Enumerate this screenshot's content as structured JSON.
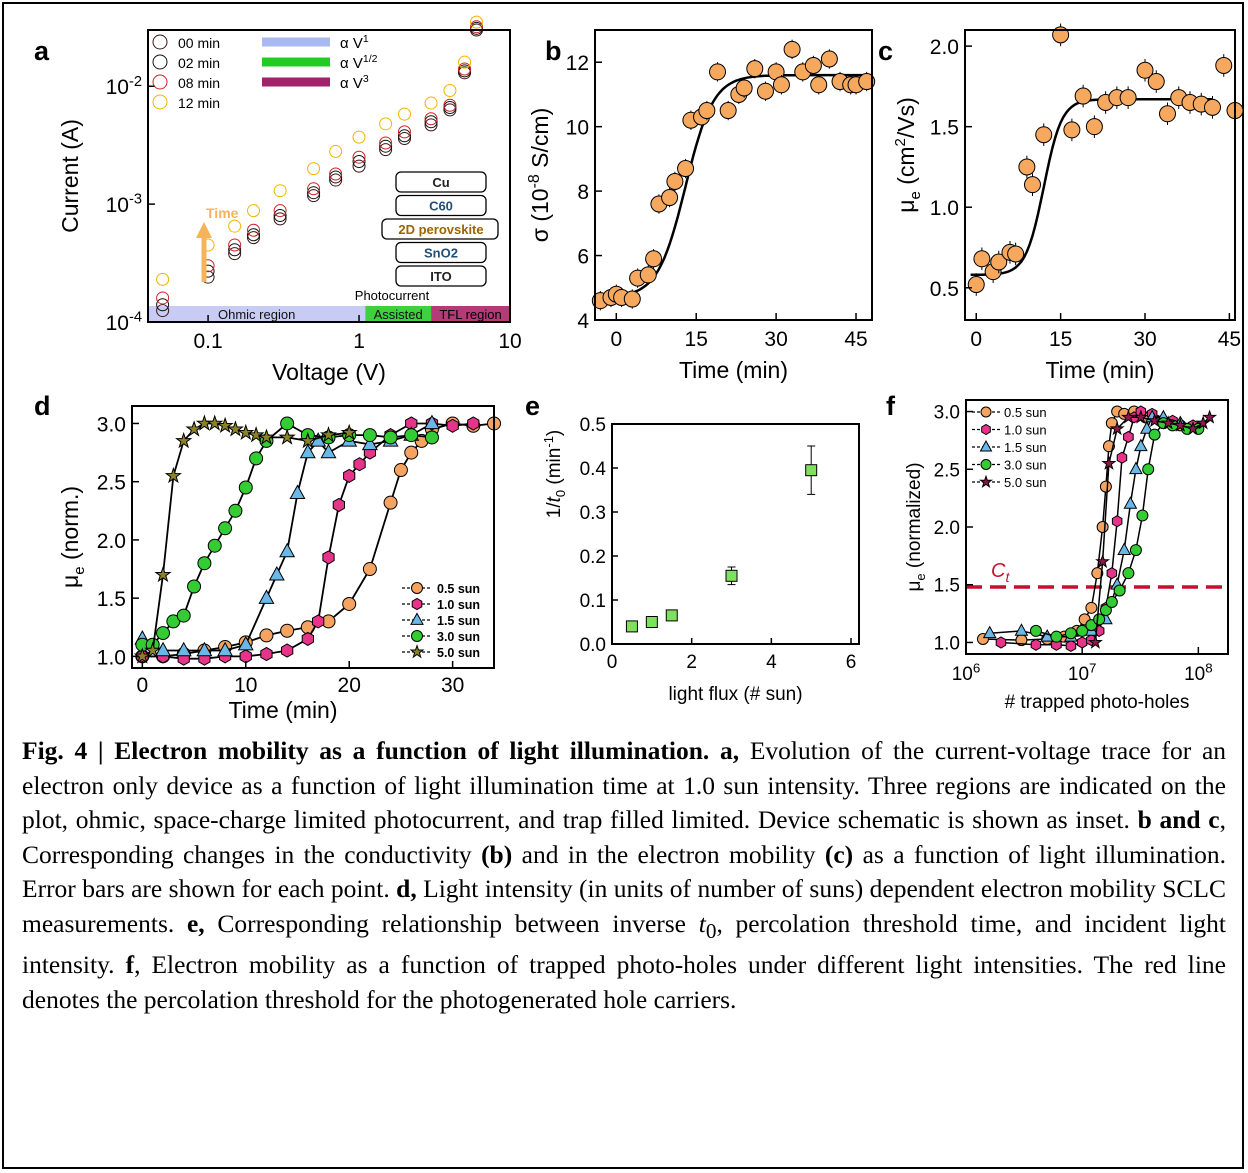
{
  "chart_data": [
    {
      "panel": "a",
      "type": "scatter",
      "xlabel": "Voltage (V)",
      "ylabel": "Current (A)",
      "xscale": "log",
      "yscale": "log",
      "xlim": [
        0.04,
        10
      ],
      "ylim": [
        0.0001,
        0.03
      ],
      "xticks": [
        "0.1",
        "1",
        "10"
      ],
      "yticks": [
        "10^-4",
        "10^-3",
        "10^-2"
      ],
      "legend": "top-left",
      "series": [
        {
          "name": "00 min",
          "color": "#3b1414",
          "x": [
            0.05,
            0.1,
            0.15,
            0.2,
            0.3,
            0.5,
            0.7,
            1,
            1.5,
            2,
            3,
            4,
            5,
            6
          ],
          "y": [
            0.000125,
            0.00024,
            0.00038,
            0.00052,
            0.00075,
            0.00118,
            0.0016,
            0.0021,
            0.0029,
            0.0036,
            0.0047,
            0.0063,
            0.013,
            0.03
          ]
        },
        {
          "name": "02 min",
          "color": "#111111",
          "x": [
            0.05,
            0.1,
            0.15,
            0.2,
            0.3,
            0.5,
            0.7,
            1,
            1.5,
            2,
            3,
            4,
            5,
            6
          ],
          "y": [
            0.00014,
            0.00027,
            0.00041,
            0.00055,
            0.0008,
            0.00125,
            0.0017,
            0.0023,
            0.0031,
            0.0038,
            0.005,
            0.0066,
            0.0135,
            0.031
          ]
        },
        {
          "name": "08 min",
          "color": "#cc2222",
          "x": [
            0.05,
            0.1,
            0.15,
            0.2,
            0.3,
            0.5,
            0.7,
            1,
            1.5,
            2,
            3,
            4,
            5,
            6
          ],
          "y": [
            0.00016,
            0.0003,
            0.00045,
            0.0006,
            0.00088,
            0.00135,
            0.0018,
            0.0025,
            0.0033,
            0.0041,
            0.0053,
            0.0069,
            0.014,
            0.032
          ]
        },
        {
          "name": "12 min",
          "color": "#f2b300",
          "x": [
            0.05,
            0.1,
            0.15,
            0.2,
            0.3,
            0.5,
            0.7,
            1,
            1.5,
            2,
            3,
            4,
            5,
            6
          ],
          "y": [
            0.00023,
            0.00045,
            0.00065,
            0.00088,
            0.0013,
            0.002,
            0.0028,
            0.0037,
            0.0048,
            0.0058,
            0.0072,
            0.0092,
            0.016,
            0.035
          ]
        }
      ],
      "fit_lines": [
        {
          "name": "α V^1",
          "color": "#a8b8f0"
        },
        {
          "name": "α V^1/2",
          "color": "#22cc22"
        },
        {
          "name": "α V^3",
          "color": "#a0226a"
        }
      ],
      "regions": [
        {
          "label": "Ohmic region",
          "color": "#c8ccf5",
          "from": 0.04,
          "to": 1.1
        },
        {
          "label": "Assisted",
          "color": "#3fcf3f",
          "from": 1.1,
          "to": 3
        },
        {
          "label": "TFL region",
          "color": "#b53a78",
          "from": 3,
          "to": 10
        }
      ],
      "annotations": {
        "photocurrent": "Photocurrent",
        "time_arrow": "Time"
      },
      "device_stack": [
        "Cu",
        "C60",
        "2D perovskite",
        "SnO2",
        "ITO"
      ]
    },
    {
      "panel": "b",
      "type": "scatter",
      "xlabel": "Time (min)",
      "ylabel": "σ (10^-8 S/cm)",
      "xlim": [
        -4,
        48
      ],
      "ylim": [
        4,
        13
      ],
      "xticks": [
        0,
        15,
        30,
        45
      ],
      "yticks": [
        4,
        6,
        8,
        10,
        12
      ],
      "x": [
        -3,
        -1,
        0,
        1,
        3,
        4,
        6,
        7,
        8,
        10,
        11,
        13,
        14,
        16,
        17,
        19,
        21,
        23,
        24,
        26,
        28,
        30,
        31,
        33,
        35,
        37,
        38,
        40,
        42,
        44,
        45,
        47
      ],
      "y": [
        4.6,
        4.7,
        4.8,
        4.7,
        4.65,
        5.3,
        5.4,
        5.9,
        7.6,
        7.8,
        8.3,
        8.7,
        10.2,
        10.3,
        10.5,
        11.7,
        10.5,
        11.0,
        11.2,
        11.8,
        11.1,
        11.7,
        11.3,
        12.4,
        11.7,
        11.9,
        11.3,
        12.1,
        11.4,
        11.3,
        11.3,
        11.4
      ],
      "fit": "sigmoid"
    },
    {
      "panel": "c",
      "type": "scatter",
      "xlabel": "Time (min)",
      "ylabel": "μe (cm2/Vs)",
      "xlim": [
        -2,
        46
      ],
      "ylim": [
        0.3,
        2.0
      ],
      "xticks": [
        0,
        15,
        30,
        45
      ],
      "yticks": [
        "0.5",
        "1.0",
        "1.5",
        "2.0"
      ],
      "x": [
        0,
        1,
        3,
        4,
        6,
        7,
        9,
        10,
        12,
        15,
        17,
        19,
        21,
        23,
        25,
        27,
        30,
        32,
        34,
        36,
        38,
        40,
        42,
        44,
        46
      ],
      "y": [
        0.52,
        0.68,
        0.6,
        0.66,
        0.72,
        0.71,
        1.25,
        1.14,
        1.45,
        2.07,
        1.48,
        1.69,
        1.5,
        1.65,
        1.68,
        1.68,
        1.85,
        1.78,
        1.58,
        1.68,
        1.65,
        1.64,
        1.62,
        1.88,
        1.6
      ],
      "fit": "sigmoid"
    },
    {
      "panel": "d",
      "type": "line",
      "xlabel": "Time (min)",
      "ylabel": "μe (norm.)",
      "xlim": [
        -1,
        34
      ],
      "ylim": [
        0.9,
        3.15
      ],
      "xticks": [
        0,
        10,
        20,
        30
      ],
      "yticks": [
        "1.0",
        "1.5",
        "2.0",
        "2.5",
        "3.0"
      ],
      "legend": "bottom-right",
      "series": [
        {
          "name": "0.5 sun",
          "color": "#f4a460",
          "marker": "circle",
          "x": [
            0,
            2,
            4,
            6,
            8,
            10,
            12,
            14,
            16,
            18,
            20,
            22,
            24,
            25,
            26,
            27,
            28,
            30,
            32,
            34
          ],
          "y": [
            1.0,
            1.0,
            1.02,
            1.05,
            1.08,
            1.12,
            1.18,
            1.22,
            1.25,
            1.3,
            1.45,
            1.75,
            2.32,
            2.6,
            2.75,
            2.85,
            2.95,
            3.0,
            2.98,
            3.0
          ]
        },
        {
          "name": "1.0 sun",
          "color": "#e6348a",
          "marker": "hexagon",
          "x": [
            0,
            2,
            4,
            6,
            8,
            10,
            12,
            14,
            16,
            17,
            18,
            19,
            20,
            21,
            22,
            24,
            26,
            28,
            30,
            32
          ],
          "y": [
            1.0,
            1.0,
            0.98,
            0.98,
            1.0,
            1.0,
            1.02,
            1.05,
            1.15,
            1.3,
            1.85,
            2.3,
            2.55,
            2.65,
            2.75,
            2.9,
            3.0,
            3.0,
            2.98,
            3.0
          ]
        },
        {
          "name": "1.5 sun",
          "color": "#6ab8e8",
          "marker": "triangle",
          "x": [
            0,
            2,
            4,
            6,
            8,
            10,
            12,
            13,
            14,
            15,
            16,
            17,
            18,
            20,
            22,
            24,
            26,
            28
          ],
          "y": [
            1.15,
            1.05,
            1.05,
            1.05,
            1.05,
            1.1,
            1.5,
            1.7,
            1.9,
            2.4,
            2.75,
            2.85,
            2.75,
            2.85,
            2.82,
            2.85,
            2.9,
            3.0
          ]
        },
        {
          "name": "3.0 sun",
          "color": "#33cc33",
          "marker": "circle",
          "x": [
            0,
            1,
            2,
            3,
            4,
            5,
            6,
            7,
            8,
            9,
            10,
            11,
            12,
            14,
            16,
            18,
            20,
            22,
            24,
            26,
            28
          ],
          "y": [
            1.1,
            1.1,
            1.2,
            1.3,
            1.35,
            1.6,
            1.8,
            1.95,
            2.1,
            2.25,
            2.45,
            2.7,
            2.85,
            3.0,
            2.9,
            2.88,
            2.9,
            2.9,
            2.88,
            2.9,
            2.88
          ]
        },
        {
          "name": "5.0 sun",
          "color": "#8a8226",
          "marker": "star",
          "x": [
            0,
            1,
            2,
            3,
            4,
            5,
            6,
            7,
            8,
            9,
            10,
            11,
            12,
            14,
            16,
            18,
            20
          ],
          "y": [
            1.0,
            1.05,
            1.7,
            2.55,
            2.85,
            2.95,
            3.0,
            3.0,
            2.98,
            2.95,
            2.92,
            2.9,
            2.88,
            2.88,
            2.85,
            2.9,
            2.92
          ]
        }
      ]
    },
    {
      "panel": "e",
      "type": "scatter",
      "xlabel": "light flux (# sun)",
      "ylabel": "1/t0 (min-1)",
      "xlim": [
        0,
        6.2
      ],
      "ylim": [
        0,
        0.5
      ],
      "xticks": [
        0,
        2,
        4,
        6
      ],
      "yticks": [
        "0.0",
        "0.1",
        "0.2",
        "0.3",
        "0.4",
        "0.5"
      ],
      "x": [
        0.5,
        1.0,
        1.5,
        3.0,
        5.0
      ],
      "y": [
        0.04,
        0.05,
        0.065,
        0.155,
        0.395
      ],
      "err": [
        0.008,
        0.008,
        0.008,
        0.02,
        0.055
      ]
    },
    {
      "panel": "f",
      "type": "scatter",
      "xlabel": "# trapped photo-holes",
      "ylabel": "μe (normalized)",
      "xscale": "log",
      "xlim": [
        1000000,
        180000000
      ],
      "ylim": [
        0.9,
        3.1
      ],
      "xticks": [
        "10^6",
        "10^7",
        "10^8"
      ],
      "yticks": [
        "1.0",
        "1.5",
        "2.0",
        "2.5",
        "3.0"
      ],
      "legend": "top-left",
      "threshold": {
        "label": "Ct",
        "y": 1.48,
        "color": "#c8102e"
      },
      "series": [
        {
          "name": "0.5 sun",
          "color": "#f4a460",
          "marker": "circle",
          "x": [
            1400000.0,
            3000000.0,
            5000000.0,
            7000000.0,
            9000000.0,
            10500000.0,
            12000000.0,
            13500000.0,
            15000000.0,
            16000000.0,
            17000000.0,
            18000000.0,
            20000000.0,
            23000000.0,
            28000000.0,
            35000000.0,
            50000000.0,
            70000000.0
          ],
          "y": [
            1.03,
            1.02,
            1.03,
            1.05,
            1.1,
            1.2,
            1.3,
            1.6,
            2.0,
            2.35,
            2.7,
            2.9,
            3.0,
            2.98,
            3.0,
            2.95,
            2.9,
            2.88
          ]
        },
        {
          "name": "1.0 sun",
          "color": "#e6348a",
          "marker": "hexagon",
          "x": [
            2000000.0,
            4000000.0,
            6000000.0,
            8000000.0,
            10000000.0,
            12000000.0,
            14000000.0,
            16000000.0,
            18000000.0,
            20000000.0,
            22000000.0,
            25000000.0,
            28000000.0,
            32000000.0,
            40000000.0,
            60000000.0,
            90000000.0
          ],
          "y": [
            1.0,
            0.98,
            0.98,
            0.97,
            1.0,
            1.02,
            1.1,
            1.3,
            1.6,
            2.05,
            2.6,
            2.78,
            2.95,
            3.0,
            2.98,
            2.92,
            2.88
          ]
        },
        {
          "name": "1.5 sun",
          "color": "#6ab8e8",
          "marker": "triangle",
          "x": [
            1600000.0,
            3000000.0,
            5000000.0,
            8000000.0,
            12000000.0,
            16000000.0,
            20000000.0,
            23000000.0,
            26000000.0,
            29000000.0,
            32000000.0,
            36000000.0,
            40000000.0,
            50000000.0,
            70000000.0
          ],
          "y": [
            1.08,
            1.1,
            1.05,
            1.05,
            1.1,
            1.2,
            1.5,
            1.8,
            2.2,
            2.5,
            2.7,
            2.85,
            2.95,
            2.95,
            2.9
          ]
        },
        {
          "name": "3.0 sun",
          "color": "#33cc33",
          "marker": "circle",
          "x": [
            4000000.0,
            6000000.0,
            8000000.0,
            10000000.0,
            12000000.0,
            14000000.0,
            16000000.0,
            18000000.0,
            21000000.0,
            25000000.0,
            29000000.0,
            33000000.0,
            37000000.0,
            42000000.0,
            50000000.0,
            60000000.0,
            80000000.0,
            100000000.0
          ],
          "y": [
            1.1,
            1.05,
            1.08,
            1.1,
            1.15,
            1.2,
            1.28,
            1.35,
            1.45,
            1.6,
            1.8,
            2.1,
            2.5,
            2.8,
            2.9,
            2.88,
            2.85,
            2.85
          ]
        },
        {
          "name": "5.0 sun",
          "color": "#8b1a4a",
          "marker": "star",
          "x": [
            13000000.0,
            15000000.0,
            17000000.0,
            20000000.0,
            25000000.0,
            32000000.0,
            42000000.0,
            55000000.0,
            70000000.0,
            90000000.0,
            110000000.0,
            125000000.0
          ],
          "y": [
            1.0,
            1.7,
            2.55,
            2.85,
            2.95,
            2.95,
            2.92,
            2.9,
            2.88,
            2.85,
            2.9,
            2.95
          ]
        }
      ]
    }
  ],
  "caption": {
    "fig_label": "Fig. 4 | Electron mobility as a function of light illumination.",
    "a_label": "a,",
    "a_text": "Evolution of the current-voltage trace for an electron only device as a function of light illumination time at 1.0 sun intensity. Three regions are indicated on the plot, ohmic, space-charge limited photocurrent, and trap filled limited. Device schematic is shown as inset.",
    "bc_label": "b and c",
    "bc_text1": ", Corresponding changes in the conductivity",
    "b_paren": "(b)",
    "bc_text2": "and in the electron mobility",
    "c_paren": "(c)",
    "bc_text3": "as a function of light illumination. Error bars are shown for each point.",
    "d_label": "d,",
    "d_text": "Light intensity (in units of number of suns) dependent electron mobility SCLC measurements.",
    "e_label": "e,",
    "e_text1": "Corresponding relationship between inverse",
    "e_t0": "t",
    "e_t0_sub": "0",
    "e_text2": ", percolation threshold time, and incident light intensity.",
    "f_label": "f",
    "f_text": ", Electron mobility as a function of trapped photo-holes under different light intensities. The red line denotes the percolation threshold for the photogenerated hole carriers."
  }
}
